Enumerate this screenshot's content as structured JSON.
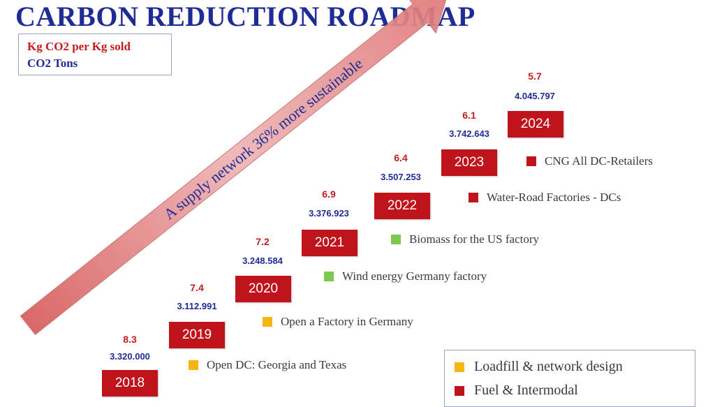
{
  "title": "CARBON REDUCTION ROADMAP",
  "units": {
    "kg_label": "Kg CO2 per Kg sold",
    "tons_label": "CO2 Tons"
  },
  "arrow": {
    "label": "A supply network 36% more sustainable"
  },
  "colors": {
    "title": "#1f2c96",
    "kg_value": "#c21c1c",
    "tons_value": "#1f2c96",
    "year_box": "#c0141c",
    "loadfill": "#f7b514",
    "biomass_wind": "#7ec850",
    "fuel": "#c0141c"
  },
  "years": [
    {
      "year": "2018",
      "kg": "8.3",
      "tons": "3.320.000"
    },
    {
      "year": "2019",
      "kg": "7.4",
      "tons": "3.112.991"
    },
    {
      "year": "2020",
      "kg": "7.2",
      "tons": "3.248.584"
    },
    {
      "year": "2021",
      "kg": "6.9",
      "tons": "3.376.923"
    },
    {
      "year": "2022",
      "kg": "6.4",
      "tons": "3.507.253"
    },
    {
      "year": "2023",
      "kg": "6.1",
      "tons": "3.742.643"
    },
    {
      "year": "2024",
      "kg": "5.7",
      "tons": "4.045.797"
    }
  ],
  "initiatives": [
    {
      "label": "Open DC: Georgia and Texas",
      "color": "yellow"
    },
    {
      "label": "Open a Factory in Germany",
      "color": "yellow"
    },
    {
      "label": "Wind energy Germany factory",
      "color": "green"
    },
    {
      "label": "Biomass for the US factory",
      "color": "green"
    },
    {
      "label": "Water-Road Factories - DCs",
      "color": "red"
    },
    {
      "label": "CNG All DC-Retailers",
      "color": "red"
    }
  ],
  "legend": [
    {
      "label": "Loadfill & network design",
      "color": "yellow"
    },
    {
      "label": "Fuel & Intermodal",
      "color": "red"
    }
  ]
}
